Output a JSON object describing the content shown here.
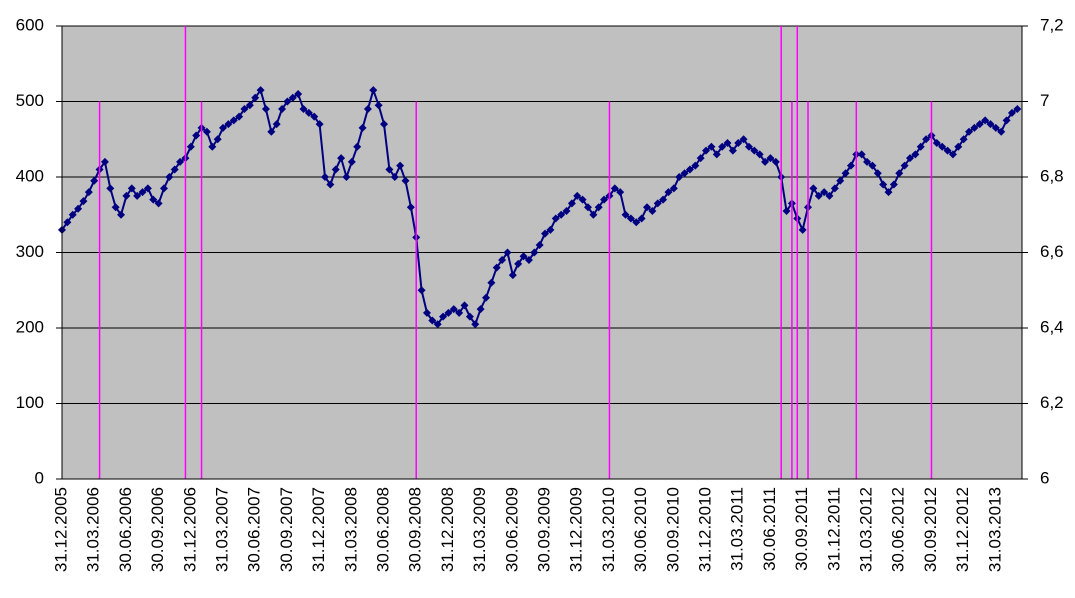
{
  "chart_data": {
    "type": "line",
    "categories": [
      "31.12.2005",
      null,
      null,
      null,
      null,
      null,
      "31.03.2006",
      null,
      null,
      null,
      null,
      null,
      "30.06.2006",
      null,
      null,
      null,
      null,
      null,
      "30.09.2006",
      null,
      null,
      null,
      null,
      null,
      "31.12.2006",
      null,
      null,
      null,
      null,
      null,
      "31.03.2007",
      null,
      null,
      null,
      null,
      null,
      "30.06.2007",
      null,
      null,
      null,
      null,
      null,
      "30.09.2007",
      null,
      null,
      null,
      null,
      null,
      "31.12.2007",
      null,
      null,
      null,
      null,
      null,
      "31.03.2008",
      null,
      null,
      null,
      null,
      null,
      "30.06.2008",
      null,
      null,
      null,
      null,
      null,
      "30.09.2008",
      null,
      null,
      null,
      null,
      null,
      "31.12.2008",
      null,
      null,
      null,
      null,
      null,
      "31.03.2009",
      null,
      null,
      null,
      null,
      null,
      "30.06.2009",
      null,
      null,
      null,
      null,
      null,
      "30.09.2009",
      null,
      null,
      null,
      null,
      null,
      "31.12.2009",
      null,
      null,
      null,
      null,
      null,
      "31.03.2010",
      null,
      null,
      null,
      null,
      null,
      "30.06.2010",
      null,
      null,
      null,
      null,
      null,
      "30.09.2010",
      null,
      null,
      null,
      null,
      null,
      "31.12.2010",
      null,
      null,
      null,
      null,
      null,
      "31.03.2011",
      null,
      null,
      null,
      null,
      null,
      "30.06.2011",
      null,
      null,
      null,
      null,
      null,
      "30.09.2011",
      null,
      null,
      null,
      null,
      null,
      "31.12.2011",
      null,
      null,
      null,
      null,
      null,
      "31.03.2012",
      null,
      null,
      null,
      null,
      null,
      "30.06.2012",
      null,
      null,
      null,
      null,
      null,
      "30.09.2012",
      null,
      null,
      null,
      null,
      null,
      "31.12.2012",
      null,
      null,
      null,
      null,
      null,
      "31.03.2013",
      null,
      null,
      null,
      null
    ],
    "series": [
      {
        "color": "#000080",
        "values": [
          330,
          340,
          350,
          358,
          368,
          380,
          395,
          410,
          420,
          385,
          360,
          350,
          375,
          385,
          375,
          380,
          385,
          370,
          365,
          385,
          400,
          410,
          420,
          425,
          440,
          455,
          465,
          460,
          440,
          450,
          465,
          470,
          475,
          480,
          490,
          495,
          505,
          515,
          490,
          460,
          470,
          490,
          500,
          505,
          510,
          490,
          485,
          480,
          470,
          400,
          390,
          410,
          425,
          400,
          420,
          440,
          465,
          490,
          515,
          495,
          470,
          410,
          400,
          415,
          395,
          360,
          320,
          250,
          220,
          210,
          205,
          215,
          220,
          225,
          220,
          230,
          215,
          205,
          225,
          240,
          260,
          280,
          290,
          300,
          270,
          285,
          295,
          290,
          300,
          310,
          325,
          330,
          345,
          350,
          355,
          365,
          375,
          370,
          360,
          350,
          360,
          370,
          375,
          385,
          380,
          350,
          345,
          340,
          345,
          360,
          355,
          365,
          370,
          380,
          385,
          400,
          405,
          410,
          415,
          425,
          435,
          440,
          430,
          440,
          445,
          435,
          445,
          450,
          440,
          435,
          430,
          420,
          425,
          420,
          400,
          355,
          365,
          345,
          330,
          360,
          385,
          375,
          380,
          375,
          385,
          395,
          405,
          415,
          430,
          430,
          420,
          415,
          405,
          390,
          380,
          390,
          405,
          415,
          425,
          430,
          440,
          450,
          455,
          445,
          440,
          435,
          430,
          440,
          450,
          460,
          465,
          470,
          475,
          470,
          465,
          460,
          475,
          485,
          490
        ]
      },
      {
        "color": "#ff00ff",
        "axis": "y2",
        "values": [
          null,
          null,
          null,
          null,
          null,
          null,
          null,
          7,
          null,
          null,
          null,
          null,
          null,
          null,
          null,
          null,
          null,
          null,
          null,
          null,
          null,
          null,
          null,
          7.2,
          null,
          null,
          7,
          null,
          null,
          null,
          null,
          null,
          null,
          null,
          null,
          null,
          null,
          null,
          null,
          null,
          null,
          null,
          null,
          null,
          null,
          null,
          null,
          null,
          null,
          null,
          null,
          null,
          null,
          null,
          null,
          null,
          null,
          null,
          null,
          null,
          null,
          null,
          null,
          null,
          null,
          null,
          7,
          null,
          null,
          null,
          null,
          null,
          null,
          null,
          null,
          null,
          null,
          null,
          null,
          null,
          null,
          null,
          null,
          null,
          null,
          null,
          null,
          null,
          null,
          null,
          null,
          null,
          null,
          null,
          null,
          null,
          null,
          null,
          null,
          null,
          null,
          null,
          7,
          null,
          null,
          null,
          null,
          null,
          null,
          null,
          null,
          null,
          null,
          null,
          null,
          null,
          null,
          null,
          null,
          null,
          null,
          null,
          null,
          null,
          null,
          null,
          null,
          null,
          null,
          null,
          null,
          null,
          null,
          null,
          7.2,
          null,
          7,
          7.2,
          null,
          7,
          null,
          null,
          null,
          null,
          null,
          null,
          null,
          null,
          7,
          null,
          null,
          null,
          null,
          null,
          null,
          null,
          null,
          null,
          null,
          null,
          null,
          null,
          7,
          null,
          null,
          null,
          null,
          null,
          null,
          null,
          null,
          null,
          null,
          null,
          null,
          null,
          null,
          null,
          null
        ]
      }
    ],
    "ylim": [
      0,
      600
    ],
    "yticks": [
      0,
      100,
      200,
      300,
      400,
      500,
      600
    ],
    "y2lim": [
      6,
      7.2
    ],
    "y2ticks": [
      6,
      {
        "value": 6.2,
        "label": "6,2"
      },
      {
        "value": 6.4,
        "label": "6,4"
      },
      {
        "value": 6.6,
        "label": "6,6"
      },
      {
        "value": 6.8,
        "label": "6,8"
      },
      7,
      {
        "value": 7.2,
        "label": "7,2"
      }
    ],
    "grid": true
  }
}
